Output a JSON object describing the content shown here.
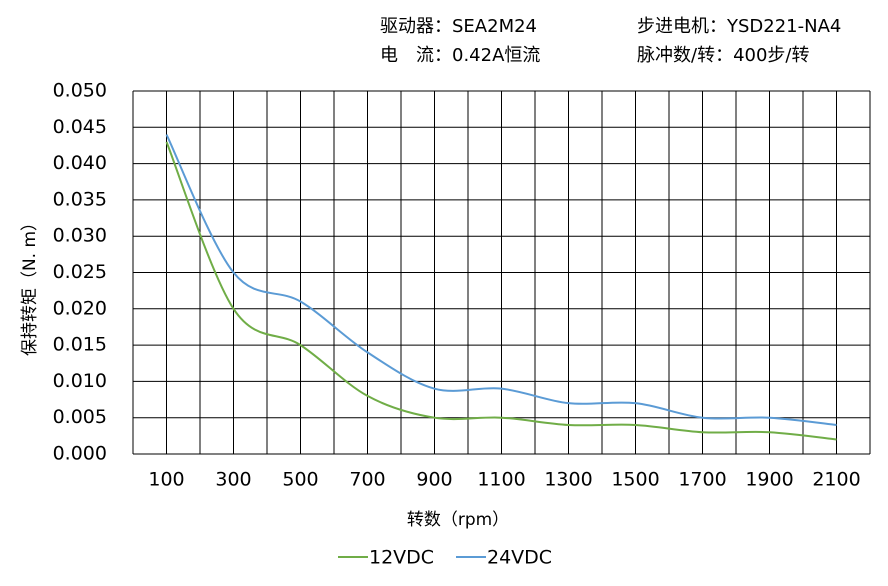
{
  "chart_data": {
    "type": "line",
    "header": [
      "驱动器：SEA2M24",
      "步进电机：YSD221-NA4",
      "电　流：0.42A恒流",
      "脉冲数/转：400步/转"
    ],
    "x_label": "转数（rpm）",
    "y_label": "保持转矩（N. m）",
    "x": [
      100,
      300,
      500,
      700,
      900,
      1100,
      1300,
      1500,
      1700,
      1900,
      2100
    ],
    "series": [
      {
        "name": "12VDC",
        "color": "#70ad47",
        "values": [
          0.043,
          0.02,
          0.015,
          0.008,
          0.005,
          0.005,
          0.004,
          0.004,
          0.003,
          0.003,
          0.002
        ]
      },
      {
        "name": "24VDC",
        "color": "#5b9bd5",
        "values": [
          0.044,
          0.025,
          0.021,
          0.014,
          0.009,
          0.009,
          0.007,
          0.007,
          0.005,
          0.005,
          0.004
        ]
      }
    ],
    "xlim": [
      0,
      2200
    ],
    "xticks": [
      100,
      300,
      500,
      700,
      900,
      1100,
      1300,
      1500,
      1700,
      1900,
      2100
    ],
    "xgrid": [
      0,
      100,
      200,
      300,
      400,
      500,
      600,
      700,
      800,
      900,
      1000,
      1100,
      1200,
      1300,
      1400,
      1500,
      1600,
      1700,
      1800,
      1900,
      2000,
      2100,
      2200
    ],
    "ylim": [
      0,
      0.05
    ],
    "yticks": [
      {
        "value": 0,
        "label": "0.000"
      },
      {
        "value": 0.005,
        "label": "0.005"
      },
      {
        "value": 0.01,
        "label": "0.010"
      },
      {
        "value": 0.015,
        "label": "0.015"
      },
      {
        "value": 0.02,
        "label": "0.020"
      },
      {
        "value": 0.025,
        "label": "0.025"
      },
      {
        "value": 0.03,
        "label": "0.030"
      },
      {
        "value": 0.035,
        "label": "0.035"
      },
      {
        "value": 0.04,
        "label": "0.040"
      },
      {
        "value": 0.045,
        "label": "0.045"
      },
      {
        "value": 0.05,
        "label": "0.050"
      }
    ],
    "grid": true,
    "smooth": true,
    "legend": "bottom"
  }
}
